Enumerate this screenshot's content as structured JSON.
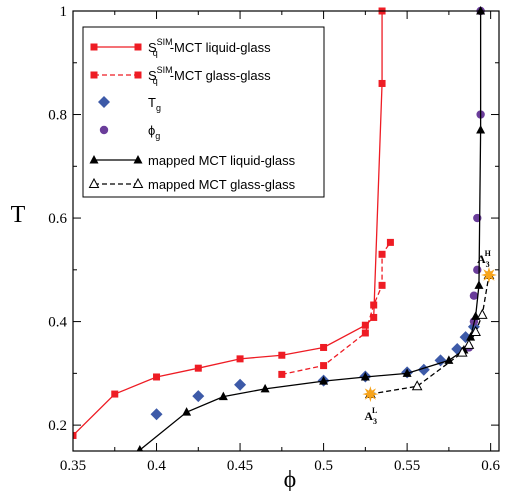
{
  "chart_data": {
    "type": "line",
    "xlabel": "ϕ",
    "ylabel": "T",
    "xlim": [
      0.35,
      0.605
    ],
    "ylim": [
      0.15,
      1.0
    ],
    "xticks": [
      "0.35",
      "0.4",
      "0.45",
      "0.5",
      "0.55",
      "0.6"
    ],
    "xtick_values": [
      0.35,
      0.4,
      0.45,
      0.5,
      0.55,
      0.6
    ],
    "yticks": [
      "0.2",
      "0.4",
      "0.6",
      "0.8",
      "1"
    ],
    "ytick_values": [
      0.2,
      0.4,
      0.6,
      0.8,
      1.0
    ],
    "legend_position": "top-left",
    "series": [
      {
        "name": "S_q^SIM-MCT liquid-glass",
        "legend": {
          "base": "S",
          "sub": "q",
          "sup": "SIM",
          "rest": "-MCT liquid-glass"
        },
        "color": "#ee1c24",
        "marker": "square",
        "dash": "solid",
        "points": [
          [
            0.35,
            0.18
          ],
          [
            0.375,
            0.26
          ],
          [
            0.4,
            0.293
          ],
          [
            0.425,
            0.31
          ],
          [
            0.45,
            0.328
          ],
          [
            0.475,
            0.335
          ],
          [
            0.5,
            0.35
          ],
          [
            0.525,
            0.393
          ],
          [
            0.53,
            0.408
          ],
          [
            0.535,
            0.86
          ],
          [
            0.535,
            1.0
          ]
        ]
      },
      {
        "name": "S_q^SIM-MCT glass-glass",
        "legend": {
          "base": "S",
          "sub": "q",
          "sup": "SIM",
          "rest": "-MCT glass-glass"
        },
        "color": "#ee1c24",
        "marker": "square",
        "dash": "dashed",
        "points": [
          [
            0.475,
            0.298
          ],
          [
            0.5,
            0.315
          ],
          [
            0.525,
            0.378
          ],
          [
            0.53,
            0.432
          ],
          [
            0.535,
            0.47
          ],
          [
            0.535,
            0.53
          ],
          [
            0.54,
            0.553
          ]
        ]
      },
      {
        "name": "T_g",
        "legend": {
          "base": "T",
          "sub": "g",
          "sup": "",
          "rest": ""
        },
        "color": "#3d5aa8",
        "marker": "diamond",
        "dash": "none",
        "points": [
          [
            0.4,
            0.221
          ],
          [
            0.425,
            0.256
          ],
          [
            0.45,
            0.278
          ],
          [
            0.5,
            0.286
          ],
          [
            0.525,
            0.294
          ],
          [
            0.55,
            0.302
          ],
          [
            0.56,
            0.307
          ],
          [
            0.57,
            0.325
          ],
          [
            0.58,
            0.347
          ],
          [
            0.585,
            0.37
          ],
          [
            0.59,
            0.39
          ]
        ]
      },
      {
        "name": "ϕ_g",
        "legend": {
          "base": "ϕ",
          "sub": "g",
          "sup": "",
          "rest": ""
        },
        "color": "#6a3d9a",
        "marker": "circle",
        "dash": "none",
        "points": [
          [
            0.587,
            0.35
          ],
          [
            0.59,
            0.4
          ],
          [
            0.59,
            0.45
          ],
          [
            0.592,
            0.5
          ],
          [
            0.592,
            0.6
          ],
          [
            0.594,
            0.8
          ],
          [
            0.594,
            1.0
          ]
        ]
      },
      {
        "name": "mapped MCT liquid-glass",
        "legend": {
          "base": "mapped MCT liquid-glass",
          "sub": "",
          "sup": "",
          "rest": ""
        },
        "color": "#000000",
        "marker": "triangle",
        "dash": "solid",
        "points": [
          [
            0.39,
            0.152
          ],
          [
            0.418,
            0.225
          ],
          [
            0.44,
            0.255
          ],
          [
            0.465,
            0.27
          ],
          [
            0.5,
            0.285
          ],
          [
            0.525,
            0.293
          ],
          [
            0.55,
            0.3
          ],
          [
            0.575,
            0.325
          ],
          [
            0.584,
            0.345
          ],
          [
            0.588,
            0.37
          ],
          [
            0.591,
            0.41
          ],
          [
            0.593,
            0.47
          ],
          [
            0.594,
            0.77
          ],
          [
            0.594,
            1.0
          ]
        ]
      },
      {
        "name": "mapped MCT glass-glass",
        "legend": {
          "base": "mapped MCT glass-glass",
          "sub": "",
          "sup": "",
          "rest": ""
        },
        "color": "#000000",
        "marker": "triangle-open",
        "dash": "dashed",
        "points": [
          [
            0.528,
            0.26
          ],
          [
            0.556,
            0.275
          ],
          [
            0.583,
            0.34
          ],
          [
            0.587,
            0.355
          ],
          [
            0.591,
            0.38
          ],
          [
            0.595,
            0.413
          ],
          [
            0.599,
            0.49
          ]
        ]
      }
    ],
    "annotations": [
      {
        "label_base": "A",
        "label_sub": "3",
        "label_sup": "L",
        "x": 0.528,
        "y": 0.26,
        "color": "#f7a41c"
      },
      {
        "label_base": "A",
        "label_sub": "3",
        "label_sup": "H",
        "x": 0.599,
        "y": 0.49,
        "color": "#f7a41c"
      }
    ]
  }
}
